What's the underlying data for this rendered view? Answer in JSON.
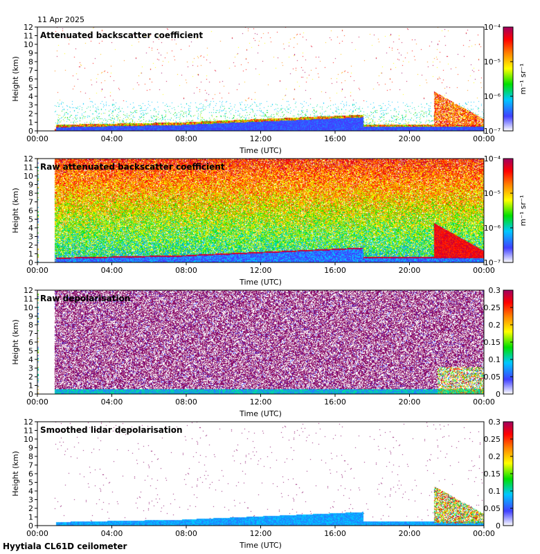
{
  "date_label": "11 Apr 2025",
  "footer": "Hyytiala CL61D ceilometer",
  "chart_data": [
    {
      "type": "heatmap",
      "title": "Attenuated backscatter coefficient",
      "xlabel": "Time (UTC)",
      "ylabel": "Height (km)",
      "xlim": [
        0,
        24
      ],
      "ylim": [
        0,
        12
      ],
      "xticks": [
        "00:00",
        "04:00",
        "08:00",
        "12:00",
        "16:00",
        "20:00",
        "00:00"
      ],
      "yticks": [
        0,
        1,
        2,
        3,
        4,
        5,
        6,
        7,
        8,
        9,
        10,
        11,
        12
      ],
      "colorbar": {
        "scale": "log",
        "range": [
          1e-07,
          0.0001
        ],
        "ticks": [
          "10⁻⁷",
          "10⁻⁶",
          "10⁻⁵",
          "10⁻⁴"
        ],
        "unit": "m⁻¹ sr⁻¹"
      },
      "pattern": "sparse"
    },
    {
      "type": "heatmap",
      "title": "Raw attenuated backscatter coefficient",
      "xlabel": "Time (UTC)",
      "ylabel": "Height (km)",
      "xlim": [
        0,
        24
      ],
      "ylim": [
        0,
        12
      ],
      "xticks": [
        "00:00",
        "04:00",
        "08:00",
        "12:00",
        "16:00",
        "20:00",
        "00:00"
      ],
      "yticks": [
        0,
        1,
        2,
        3,
        4,
        5,
        6,
        7,
        8,
        9,
        10,
        11,
        12
      ],
      "colorbar": {
        "scale": "log",
        "range": [
          1e-07,
          0.0001
        ],
        "ticks": [
          "10⁻⁷",
          "10⁻⁶",
          "10⁻⁵",
          "10⁻⁴"
        ],
        "unit": "m⁻¹ sr⁻¹"
      },
      "pattern": "dense"
    },
    {
      "type": "heatmap",
      "title": "Raw depolarisation",
      "xlabel": "Time (UTC)",
      "ylabel": "Height (km)",
      "xlim": [
        0,
        24
      ],
      "ylim": [
        0,
        12
      ],
      "xticks": [
        "00:00",
        "04:00",
        "08:00",
        "12:00",
        "16:00",
        "20:00",
        "00:00"
      ],
      "yticks": [
        0,
        1,
        2,
        3,
        4,
        5,
        6,
        7,
        8,
        9,
        10,
        11,
        12
      ],
      "colorbar": {
        "scale": "linear",
        "range": [
          0,
          0.3
        ],
        "ticks": [
          "0",
          "0.05",
          "0.1",
          "0.15",
          "0.2",
          "0.25",
          "0.3"
        ],
        "unit": ""
      },
      "pattern": "noise"
    },
    {
      "type": "heatmap",
      "title": "Smoothed lidar depolarisation",
      "xlabel": "Time (UTC)",
      "ylabel": "Height (km)",
      "xlim": [
        0,
        24
      ],
      "ylim": [
        0,
        12
      ],
      "xticks": [
        "00:00",
        "04:00",
        "08:00",
        "12:00",
        "16:00",
        "20:00",
        "00:00"
      ],
      "yticks": [
        0,
        1,
        2,
        3,
        4,
        5,
        6,
        7,
        8,
        9,
        10,
        11,
        12
      ],
      "colorbar": {
        "scale": "linear",
        "range": [
          0,
          0.3
        ],
        "ticks": [
          "0",
          "0.05",
          "0.1",
          "0.15",
          "0.2",
          "0.25",
          "0.3"
        ],
        "unit": ""
      },
      "pattern": "smooth"
    }
  ]
}
